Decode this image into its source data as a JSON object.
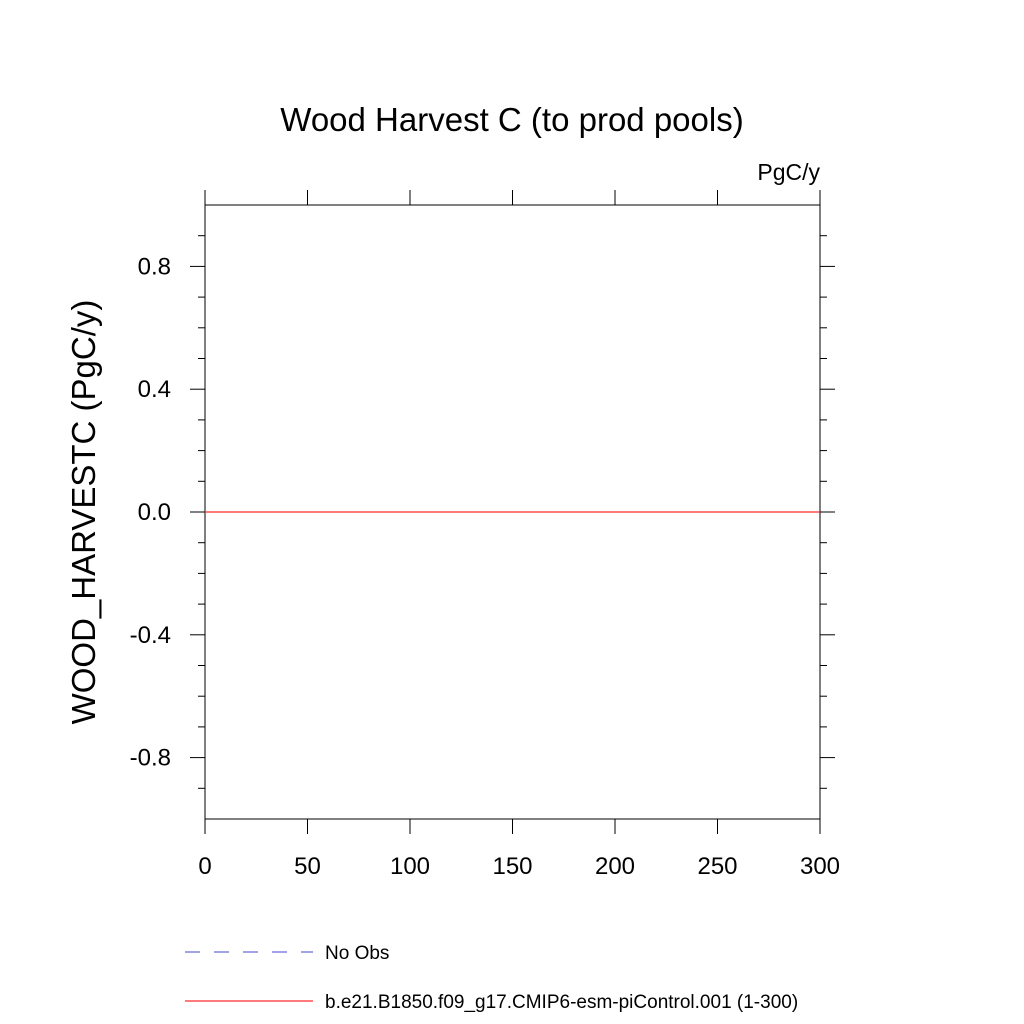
{
  "chart_data": {
    "type": "line",
    "title": "Wood Harvest C (to prod pools)",
    "units_label": "PgC/y",
    "xlabel": "",
    "ylabel": "WOOD_HARVESTC  (PgC/y)",
    "xlim": [
      0,
      300
    ],
    "ylim": [
      -1.0,
      1.0
    ],
    "x_ticks": [
      0,
      50,
      100,
      150,
      200,
      250,
      300
    ],
    "x_tick_labels": [
      "0",
      "50",
      "100",
      "150",
      "200",
      "250",
      "300"
    ],
    "y_ticks": [
      0.8,
      0.4,
      0.0,
      -0.4,
      -0.8
    ],
    "y_tick_labels": [
      "0.8",
      "0.4",
      "0.0",
      "-0.4",
      "-0.8"
    ],
    "grid": false,
    "legend_position": "bottom",
    "series": [
      {
        "name": "No Obs",
        "color": "#6b6bd6",
        "style": "dashed",
        "x": [],
        "y": []
      },
      {
        "name": "b.e21.B1850.f09_g17.CMIP6-esm-piControl.001 (1-300)",
        "color": "#ff2a2a",
        "style": "solid",
        "x": [
          0,
          50,
          100,
          150,
          200,
          250,
          300
        ],
        "y": [
          0,
          0,
          0,
          0,
          0,
          0,
          0
        ]
      }
    ]
  }
}
